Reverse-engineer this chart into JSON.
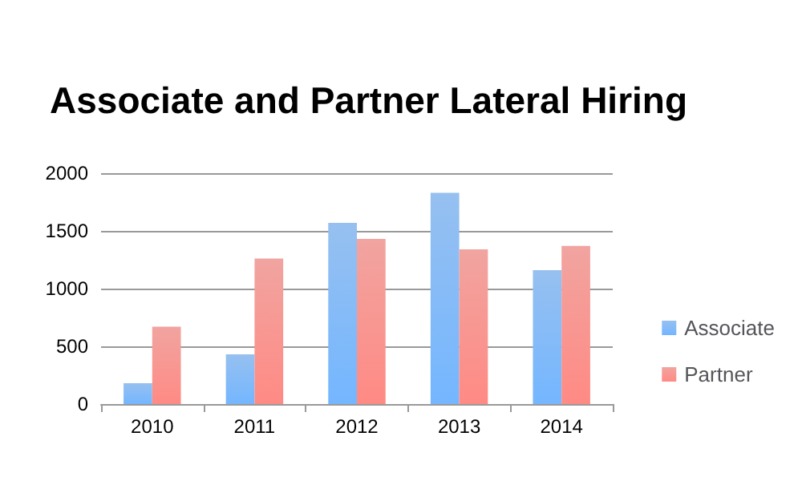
{
  "chart_data": {
    "type": "bar",
    "title": "Associate and Partner Lateral Hiring",
    "categories": [
      "2010",
      "2011",
      "2012",
      "2013",
      "2014"
    ],
    "series": [
      {
        "name": "Associate",
        "color": "#6aa6ea",
        "values": [
          180,
          430,
          1570,
          1830,
          1160
        ]
      },
      {
        "name": "Partner",
        "color": "#ec7e78",
        "values": [
          670,
          1260,
          1430,
          1340,
          1370
        ]
      }
    ],
    "ylim": [
      0,
      2000
    ],
    "yticks": [
      0,
      500,
      1000,
      1500,
      2000
    ],
    "grid": "y",
    "legend": "right"
  }
}
